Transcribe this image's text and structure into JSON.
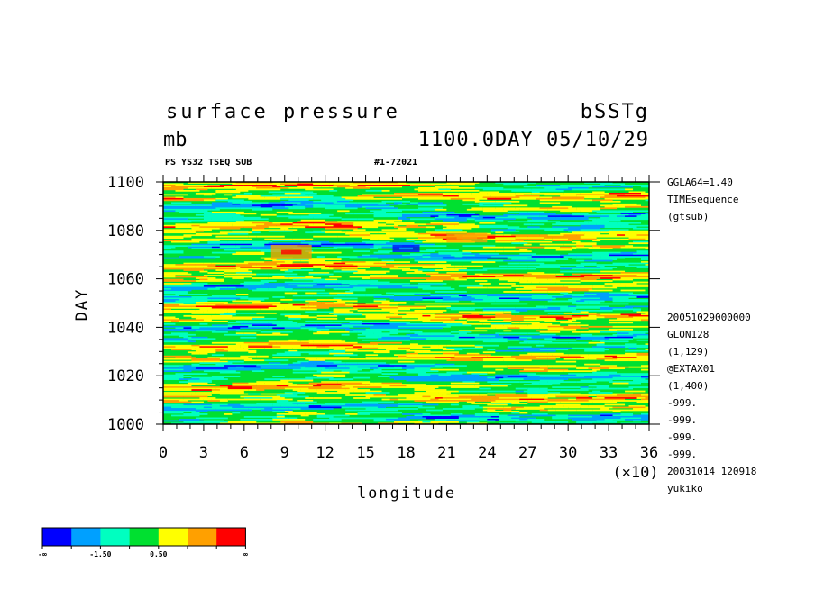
{
  "header": {
    "title": "surface pressure",
    "units": "mb",
    "experiment": "bSSTg",
    "time_stamp": "1100.0DAY 05/10/29",
    "subtitle_left": "PS YS32 TSEQ SUB",
    "subtitle_right": "#1-72021"
  },
  "side_info": {
    "top_lines": [
      "GGLA64=1.40",
      "TIMEsequence",
      "(gtsub)"
    ],
    "bottom_lines": [
      "20051029000000",
      "GLON128",
      "(1,129)",
      "@EXTAX01",
      "(1,400)",
      "-999.",
      "-999.",
      "-999.",
      "-999.",
      "20031014 120918",
      "yukiko"
    ]
  },
  "colors": {
    "palette": [
      "#0000ff",
      "#00a0ff",
      "#00ffc0",
      "#00e030",
      "#ffff00",
      "#ffa000",
      "#ff0000"
    ],
    "dominant": "green-yellow"
  },
  "chart_data": {
    "type": "heatmap",
    "title": "surface pressure",
    "xlabel": "longitude",
    "ylabel": "DAY",
    "x_multiplier_label": "(×10)",
    "xlim": [
      0,
      36
    ],
    "ylim": [
      1000,
      1100
    ],
    "x_ticks": [
      0,
      3,
      6,
      9,
      12,
      15,
      18,
      21,
      24,
      27,
      30,
      33,
      36
    ],
    "x_tick_labels": [
      "0",
      "3",
      "6",
      "9",
      "12",
      "15",
      "18",
      "21",
      "24",
      "27",
      "30",
      "33",
      "36"
    ],
    "y_ticks": [
      1000,
      1020,
      1040,
      1060,
      1080,
      1100
    ],
    "y_tick_labels": [
      "1000",
      "1020",
      "1040",
      "1060",
      "1080",
      "1100"
    ],
    "colorbar": {
      "colors": [
        "#0000ff",
        "#00a0ff",
        "#00ffc0",
        "#00e030",
        "#ffff00",
        "#ffa000",
        "#ff0000"
      ],
      "labels": [
        "-∞",
        "-1.50",
        "0.50",
        "∞"
      ]
    },
    "features": [
      {
        "x_range": [
          8,
          11
        ],
        "y_range": [
          1068,
          1074
        ],
        "level": "high (orange-red)"
      },
      {
        "x_range": [
          21,
          24
        ],
        "y_range": [
          1075,
          1079
        ],
        "level": "high (orange)"
      },
      {
        "x_range": [
          17,
          19
        ],
        "y_range": [
          1071,
          1074
        ],
        "level": "low (blue)"
      }
    ]
  }
}
